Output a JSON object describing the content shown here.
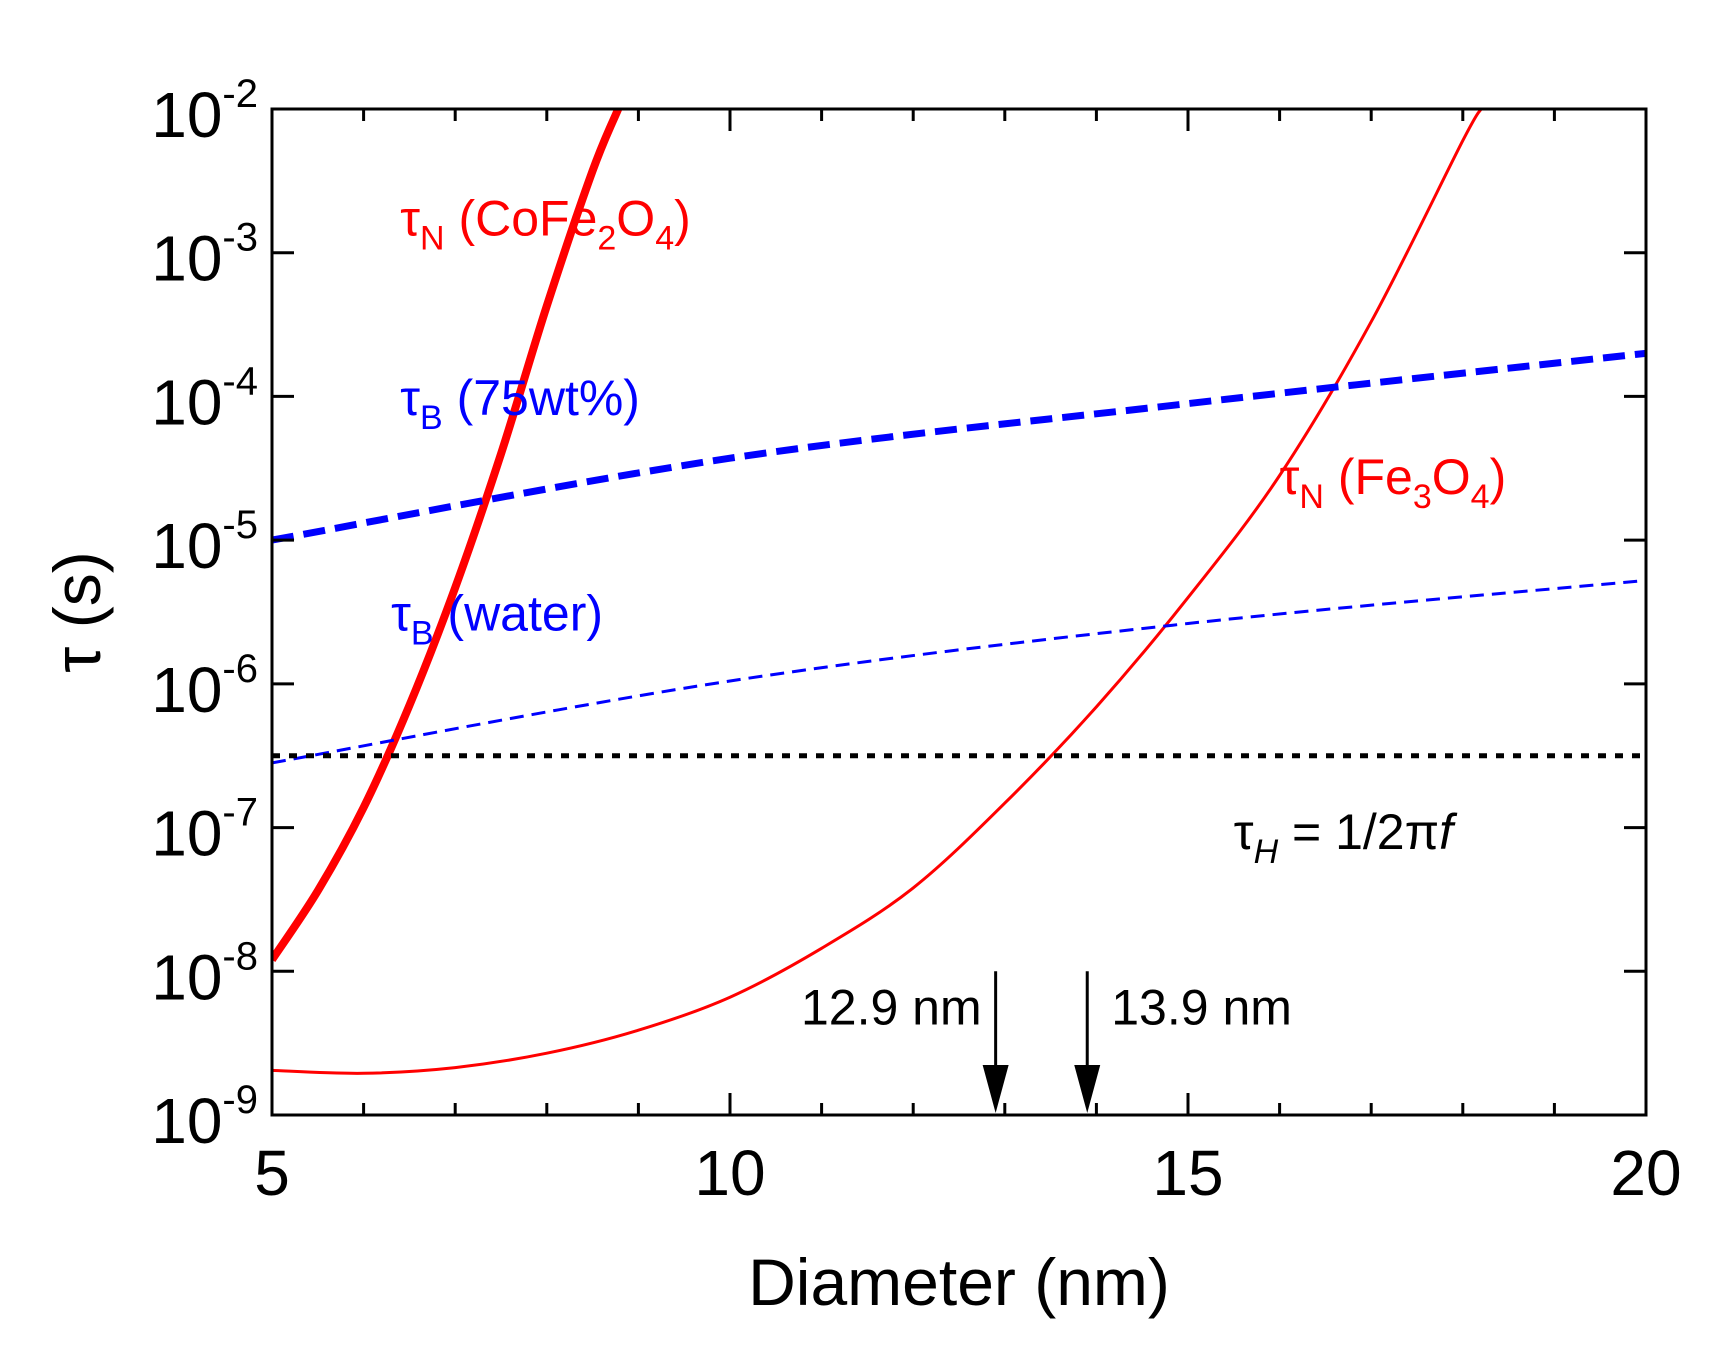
{
  "chart_data": {
    "type": "line",
    "xlabel": "Diameter (nm)",
    "ylabel": "τ (s)",
    "xlim": [
      5,
      20
    ],
    "ylim_log10": [
      -9,
      -2
    ],
    "yscale": "log",
    "x_ticks": [
      5,
      10,
      15,
      20
    ],
    "x_tick_labels": [
      "5",
      "10",
      "15",
      "20"
    ],
    "y_ticks_exp": [
      -9,
      -8,
      -7,
      -6,
      -5,
      -4,
      -3,
      -2
    ],
    "y_tick_base": "10",
    "y_tick_exp_labels": [
      "-9",
      "-8",
      "-7",
      "-6",
      "-5",
      "-4",
      "-3",
      "-2"
    ],
    "series": [
      {
        "name": "tau_N_CoFe2O4",
        "color": "#ff0000",
        "style": "solid-thick",
        "x": [
          5.0,
          5.5,
          6.0,
          6.5,
          7.0,
          7.5,
          8.0,
          8.5,
          8.78
        ],
        "log10_y": [
          -7.92,
          -7.44,
          -6.86,
          -6.15,
          -5.33,
          -4.4,
          -3.37,
          -2.43,
          -2.0
        ]
      },
      {
        "name": "tau_N_Fe3O4",
        "color": "#ff0000",
        "style": "solid-thin",
        "x": [
          5.0,
          6.0,
          7.0,
          8.0,
          9.0,
          10.0,
          11.0,
          12.0,
          13.0,
          14.0,
          15.0,
          16.0,
          17.0,
          18.0,
          18.2
        ],
        "log10_y": [
          -8.69,
          -8.71,
          -8.67,
          -8.57,
          -8.41,
          -8.18,
          -7.84,
          -7.42,
          -6.83,
          -6.16,
          -5.4,
          -4.55,
          -3.48,
          -2.22,
          -2.0
        ]
      },
      {
        "name": "tau_B_75wt",
        "color": "#0000ff",
        "style": "dashed-thick",
        "x": [
          5.0,
          10.0,
          15.0,
          20.0
        ],
        "log10_y": [
          -5.0,
          -4.43,
          -4.05,
          -3.7
        ]
      },
      {
        "name": "tau_B_water",
        "color": "#0000ff",
        "style": "dashed-thin",
        "x": [
          5.0,
          10.0,
          15.0,
          20.0
        ],
        "log10_y": [
          -6.55,
          -5.98,
          -5.58,
          -5.28
        ]
      },
      {
        "name": "tau_H",
        "color": "#000000",
        "style": "dotted",
        "x": [
          5.0,
          20.0
        ],
        "log10_y": [
          -6.5,
          -6.5
        ]
      }
    ],
    "annotations": {
      "tau_n_cofe2o4": {
        "symbol": "τ",
        "sub": "N",
        "pre": " (CoFe",
        "sub2": "2",
        "mid": "O",
        "sub3": "4",
        "post": ")",
        "color": "#ff0000",
        "x": 6.4,
        "log10_y": -2.88
      },
      "tau_b_75wt": {
        "symbol": "τ",
        "sub": "B",
        "post": " (75wt%)",
        "color": "#0000ff",
        "x": 6.4,
        "log10_y": -4.13
      },
      "tau_n_fe3o4": {
        "symbol": "τ",
        "sub": "N",
        "pre": " (Fe",
        "sub2": "3",
        "mid": "O",
        "sub3": "4",
        "post": ")",
        "color": "#ff0000",
        "x": 16.0,
        "log10_y": -4.68
      },
      "tau_b_water": {
        "symbol": "τ",
        "sub": "B",
        "post": " (water)",
        "color": "#0000ff",
        "x": 6.3,
        "log10_y": -5.63
      },
      "tau_h": {
        "symbol": "τ",
        "sub": "H",
        "post": " = 1/2π",
        "italic": "f",
        "color": "#000000",
        "x": 15.5,
        "log10_y": -7.15
      }
    },
    "markers": [
      {
        "label": "12.9 nm",
        "x": 12.9,
        "log10_y_top": -8.0,
        "log10_y_bottom": -9.0,
        "label_side": "left"
      },
      {
        "label": "13.9 nm",
        "x": 13.9,
        "log10_y_top": -8.0,
        "log10_y_bottom": -9.0,
        "label_side": "right"
      }
    ]
  }
}
